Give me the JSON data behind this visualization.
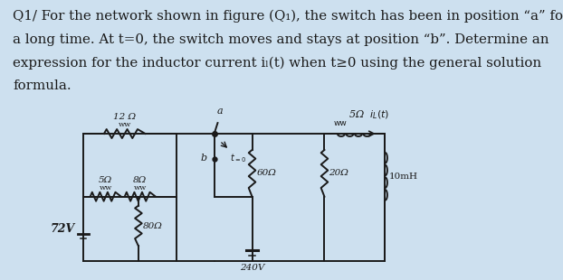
{
  "bg_color": "#cde0ef",
  "inner_bg": "#f2f0ee",
  "black": "#1a1a1a",
  "title_lines": [
    "Q1/ For the network shown in figure (Q₁), the switch has been in position “a” for",
    "a long time. At t=0, the switch moves and stays at position “b”. Determine an",
    "expression for the inductor current iₗ(t) when t≥0 using the general solution",
    "formula."
  ],
  "fig_width": 6.22,
  "fig_height": 3.1,
  "dpi": 100
}
